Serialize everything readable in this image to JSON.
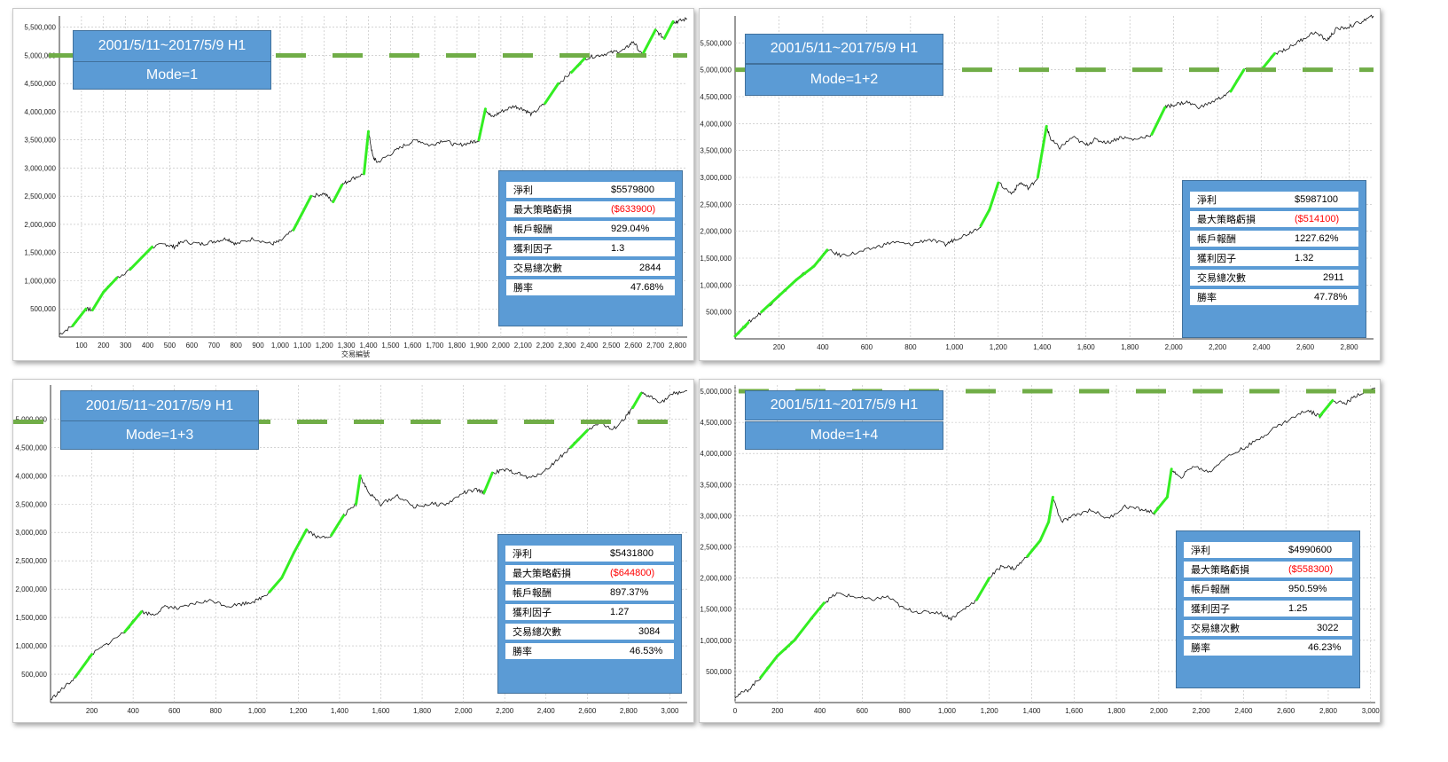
{
  "chart_data": [
    {
      "type": "line",
      "title": "2001/5/11~2017/5/9 H1",
      "mode": "Mode=1",
      "y_ticks": [
        "500,000",
        "1,000,000",
        "1,500,000",
        "2,000,000",
        "2,500,000",
        "3,000,000",
        "3,500,000",
        "4,000,000",
        "4,500,000",
        "5,000,000",
        "5,500,000"
      ],
      "x_ticks": [
        "100",
        "200",
        "300",
        "400",
        "500",
        "600",
        "700",
        "800",
        "900",
        "1,000",
        "1,100",
        "1,200",
        "1,300",
        "1,400",
        "1,500",
        "1,600",
        "1,700",
        "1,800",
        "1,900",
        "2,000",
        "2,100",
        "2,200",
        "2,300",
        "2,400",
        "2,500",
        "2,600",
        "2,700",
        "2,800"
      ],
      "xlabel": "交易編號",
      "ylim": [
        0,
        5700000
      ],
      "xlim": [
        0,
        2844
      ],
      "equity_curve": {
        "x": [
          0,
          60,
          120,
          150,
          200,
          260,
          320,
          420,
          480,
          520,
          560,
          640,
          700,
          760,
          800,
          880,
          960,
          1000,
          1060,
          1100,
          1140,
          1200,
          1240,
          1280,
          1320,
          1380,
          1400,
          1420,
          1440,
          1500,
          1560,
          1620,
          1680,
          1740,
          1800,
          1860,
          1900,
          1930,
          1960,
          2000,
          2060,
          2100,
          2140,
          2200,
          2260,
          2320,
          2380,
          2440,
          2500,
          2560,
          2600,
          2640,
          2700,
          2740,
          2780,
          2800,
          2844
        ],
        "y": [
          50000,
          200000,
          500000,
          480000,
          800000,
          1050000,
          1200000,
          1600000,
          1650000,
          1600000,
          1700000,
          1650000,
          1700000,
          1750000,
          1650000,
          1750000,
          1650000,
          1700000,
          1900000,
          2200000,
          2500000,
          2550000,
          2400000,
          2700000,
          2800000,
          2900000,
          3650000,
          3200000,
          3100000,
          3250000,
          3400000,
          3500000,
          3400000,
          3500000,
          3400000,
          3450000,
          3500000,
          4050000,
          3900000,
          4000000,
          4100000,
          4050000,
          3950000,
          4150000,
          4500000,
          4700000,
          4950000,
          5000000,
          5050000,
          5100000,
          5250000,
          5000000,
          5450000,
          5300000,
          5600000,
          5600000,
          5650000
        ]
      },
      "hline": 5000000,
      "stats": [
        {
          "label": "淨利",
          "value": "$5579800",
          "negative": false
        },
        {
          "label": "最大策略虧損",
          "value": "($633900)",
          "negative": true
        },
        {
          "label": "帳戶報酬",
          "value": "929.04%",
          "negative": false
        },
        {
          "label": "獲利因子",
          "value": "1.3",
          "negative": false
        },
        {
          "label": "交易總次數",
          "value": "2844",
          "negative": false
        },
        {
          "label": "勝率",
          "value": "47.68%",
          "negative": false
        }
      ]
    },
    {
      "type": "line",
      "title": "2001/5/11~2017/5/9 H1",
      "mode": "Mode=1+2",
      "y_ticks": [
        "500,000",
        "1,000,000",
        "1,500,000",
        "2,000,000",
        "2,500,000",
        "3,000,000",
        "3,500,000",
        "4,000,000",
        "4,500,000",
        "5,000,000",
        "5,500,000"
      ],
      "x_ticks": [
        "200",
        "400",
        "600",
        "800",
        "1,000",
        "1,200",
        "1,400",
        "1,600",
        "1,800",
        "2,000",
        "2,200",
        "2,400",
        "2,600",
        "2,800"
      ],
      "ylim": [
        0,
        6000000
      ],
      "xlim": [
        0,
        2911
      ],
      "equity_curve": {
        "x": [
          0,
          60,
          120,
          200,
          280,
          360,
          420,
          480,
          560,
          640,
          720,
          800,
          880,
          960,
          1000,
          1060,
          1120,
          1160,
          1200,
          1260,
          1300,
          1340,
          1380,
          1420,
          1440,
          1480,
          1540,
          1600,
          1640,
          1700,
          1760,
          1820,
          1900,
          1960,
          2000,
          2060,
          2120,
          2200,
          2260,
          2320,
          2400,
          2460,
          2520,
          2580,
          2640,
          2700,
          2740,
          2800,
          2860,
          2911
        ],
        "y": [
          50000,
          300000,
          500000,
          800000,
          1100000,
          1350000,
          1650000,
          1550000,
          1600000,
          1700000,
          1800000,
          1750000,
          1850000,
          1750000,
          1850000,
          1950000,
          2100000,
          2400000,
          2900000,
          2700000,
          2900000,
          2800000,
          3000000,
          3950000,
          3700000,
          3550000,
          3750000,
          3600000,
          3700000,
          3650000,
          3750000,
          3700000,
          3800000,
          4300000,
          4350000,
          4400000,
          4300000,
          4450000,
          4600000,
          5000000,
          5000000,
          5300000,
          5400000,
          5550000,
          5700000,
          5550000,
          5750000,
          5800000,
          5900000,
          6000000
        ]
      },
      "hline": 5000000,
      "stats": [
        {
          "label": "淨利",
          "value": "$5987100",
          "negative": false
        },
        {
          "label": "最大策略虧損",
          "value": "($514100)",
          "negative": true
        },
        {
          "label": "帳戶報酬",
          "value": "1227.62%",
          "negative": false
        },
        {
          "label": "獲利因子",
          "value": "1.32",
          "negative": false
        },
        {
          "label": "交易總次數",
          "value": "2911",
          "negative": false
        },
        {
          "label": "勝率",
          "value": "47.78%",
          "negative": false
        }
      ]
    },
    {
      "type": "line",
      "title": "2001/5/11~2017/5/9 H1",
      "mode": "Mode=1+3",
      "y_ticks": [
        "500,000",
        "1,000,000",
        "1,500,000",
        "2,000,000",
        "2,500,000",
        "3,000,000",
        "3,500,000",
        "4,000,000",
        "4,500,000",
        "5,000,000"
      ],
      "x_ticks": [
        "200",
        "400",
        "600",
        "800",
        "1,000",
        "1,200",
        "1,400",
        "1,600",
        "1,800",
        "2,000",
        "2,200",
        "2,400",
        "2,600",
        "2,800",
        "3,000"
      ],
      "ylim": [
        0,
        5600000
      ],
      "xlim": [
        0,
        3084
      ],
      "equity_curve": {
        "x": [
          0,
          60,
          120,
          200,
          280,
          360,
          440,
          500,
          560,
          620,
          700,
          780,
          860,
          940,
          1000,
          1060,
          1120,
          1180,
          1240,
          1300,
          1360,
          1420,
          1480,
          1500,
          1540,
          1600,
          1680,
          1760,
          1840,
          1920,
          2000,
          2060,
          2100,
          2140,
          2200,
          2260,
          2320,
          2400,
          2460,
          2520,
          2600,
          2660,
          2720,
          2780,
          2820,
          2860,
          2900,
          2960,
          3020,
          3084
        ],
        "y": [
          50000,
          250000,
          450000,
          850000,
          1050000,
          1250000,
          1600000,
          1550000,
          1700000,
          1650000,
          1750000,
          1800000,
          1700000,
          1750000,
          1800000,
          1950000,
          2200000,
          2650000,
          3050000,
          2900000,
          2950000,
          3300000,
          3500000,
          4000000,
          3700000,
          3500000,
          3650000,
          3450000,
          3500000,
          3500000,
          3700000,
          3750000,
          3700000,
          4050000,
          4100000,
          4050000,
          3950000,
          4100000,
          4300000,
          4500000,
          4800000,
          4950000,
          4800000,
          5000000,
          5200000,
          5450000,
          5400000,
          5300000,
          5450000,
          5500000
        ]
      },
      "hline": 4950000,
      "stats": [
        {
          "label": "淨利",
          "value": "$5431800",
          "negative": false
        },
        {
          "label": "最大策略虧損",
          "value": "($644800)",
          "negative": true
        },
        {
          "label": "帳戶報酬",
          "value": "897.37%",
          "negative": false
        },
        {
          "label": "獲利因子",
          "value": "1.27",
          "negative": false
        },
        {
          "label": "交易總次數",
          "value": "3084",
          "negative": false
        },
        {
          "label": "勝率",
          "value": "46.53%",
          "negative": false
        }
      ]
    },
    {
      "type": "line",
      "title": "2001/5/11~2017/5/9 H1",
      "mode": "Mode=1+4",
      "y_ticks": [
        "500,000",
        "1,000,000",
        "1,500,000",
        "2,000,000",
        "2,500,000",
        "3,000,000",
        "3,500,000",
        "4,000,000",
        "4,500,000",
        "5,000,000"
      ],
      "x_ticks": [
        "0",
        "200",
        "400",
        "600",
        "800",
        "1,000",
        "1,200",
        "1,400",
        "1,600",
        "1,800",
        "2,000",
        "2,200",
        "2,400",
        "2,600",
        "2,800",
        "3,000"
      ],
      "ylim": [
        0,
        5100000
      ],
      "xlim": [
        0,
        3022
      ],
      "equity_curve": {
        "x": [
          0,
          60,
          120,
          200,
          280,
          360,
          420,
          480,
          560,
          640,
          720,
          800,
          880,
          960,
          1020,
          1080,
          1140,
          1200,
          1260,
          1320,
          1380,
          1440,
          1480,
          1500,
          1540,
          1600,
          1680,
          1760,
          1840,
          1920,
          1980,
          2040,
          2060,
          2100,
          2160,
          2240,
          2300,
          2380,
          2460,
          2540,
          2620,
          2700,
          2760,
          2820,
          2880,
          2940,
          3022
        ],
        "y": [
          100000,
          200000,
          400000,
          750000,
          1000000,
          1350000,
          1600000,
          1750000,
          1700000,
          1650000,
          1700000,
          1500000,
          1450000,
          1450000,
          1350000,
          1500000,
          1650000,
          2000000,
          2200000,
          2150000,
          2350000,
          2600000,
          2900000,
          3300000,
          2900000,
          3000000,
          3100000,
          2950000,
          3150000,
          3100000,
          3050000,
          3300000,
          3750000,
          3600000,
          3800000,
          3700000,
          3900000,
          4050000,
          4200000,
          4400000,
          4550000,
          4700000,
          4600000,
          4850000,
          4800000,
          4950000,
          5050000
        ]
      },
      "hline": 5000000,
      "stats": [
        {
          "label": "淨利",
          "value": "$4990600",
          "negative": false
        },
        {
          "label": "最大策略虧損",
          "value": "($558300)",
          "negative": true
        },
        {
          "label": "帳戶報酬",
          "value": "950.59%",
          "negative": false
        },
        {
          "label": "獲利因子",
          "value": "1.25",
          "negative": false
        },
        {
          "label": "交易總次數",
          "value": "3022",
          "negative": false
        },
        {
          "label": "勝率",
          "value": "46.23%",
          "negative": false
        }
      ]
    }
  ]
}
